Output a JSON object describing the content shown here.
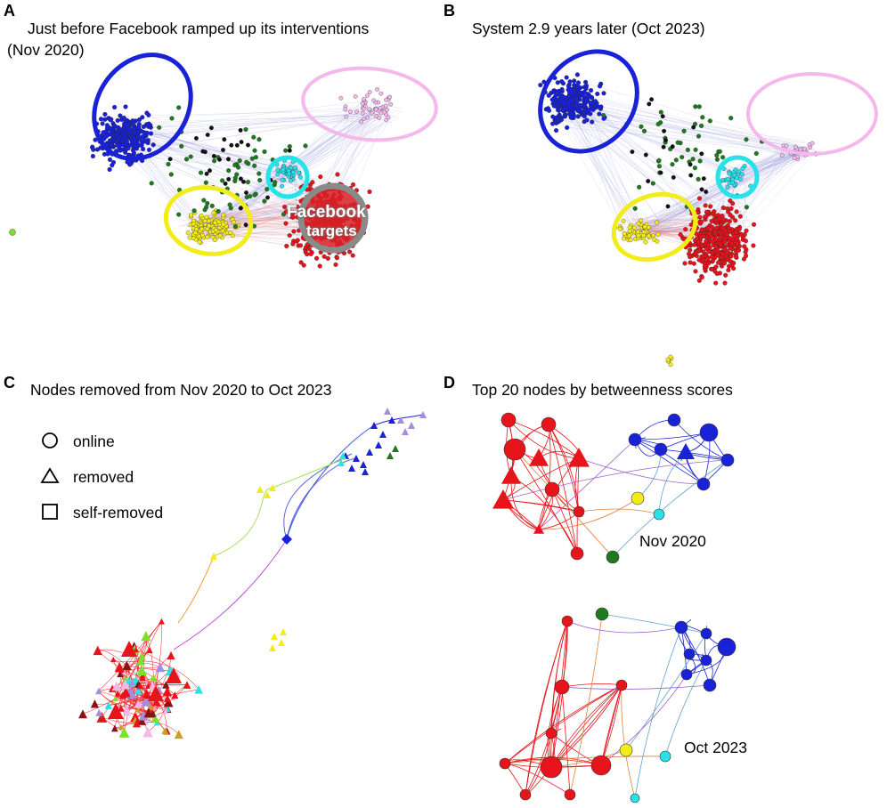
{
  "panels": {
    "a": {
      "letter": "A",
      "title_line1": "Just before Facebook ramped up its interventions",
      "title_line2": "(Nov 2020)",
      "annotation_line1": "Facebook",
      "annotation_line2": "targets"
    },
    "b": {
      "letter": "B",
      "title": "System 2.9 years later (Oct 2023)"
    },
    "c": {
      "letter": "C",
      "title": "Nodes removed from Nov 2020 to Oct 2023",
      "legend": [
        {
          "shape": "circle",
          "label": "online"
        },
        {
          "shape": "triangle",
          "label": "removed"
        },
        {
          "shape": "square",
          "label": "self-removed"
        }
      ]
    },
    "d": {
      "letter": "D",
      "title": "Top 20 nodes by betweenness scores",
      "date_top": "Nov 2020",
      "date_bottom": "Oct 2023"
    }
  },
  "colors": {
    "red": "#e8141c",
    "blue": "#1a22d8",
    "yellow": "#f2ec1a",
    "cyan": "#28e2ea",
    "pink": "#f4b8ec",
    "green": "#1f7a1f",
    "lightgreen": "#7be12b",
    "purple": "#a58ce0",
    "darkred": "#8b1212",
    "gold": "#c9a224",
    "gray": "#888888"
  }
}
